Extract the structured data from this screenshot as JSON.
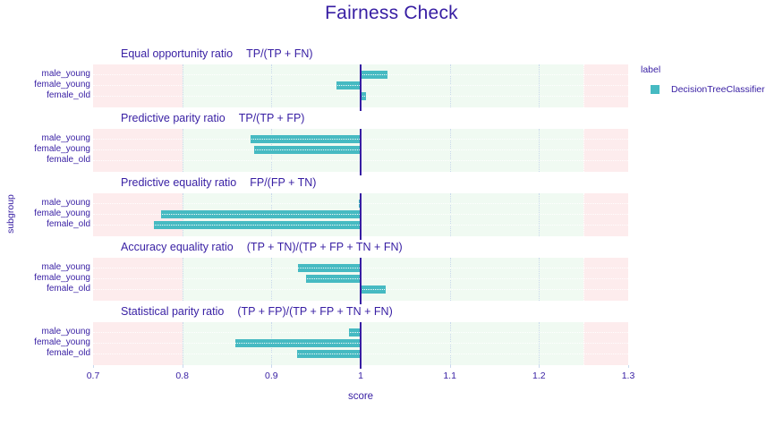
{
  "title": "Fairness Check",
  "axes": {
    "x_label": "score",
    "y_label": "subgroup",
    "x_ticks": [
      "0.7",
      "0.8",
      "0.9",
      "1",
      "1.1",
      "1.2",
      "1.3"
    ]
  },
  "legend": {
    "title": "label",
    "items": [
      {
        "label": "DecisionTreeClassifier",
        "color": "#46bac2"
      }
    ]
  },
  "colors": {
    "text": "#371ea3",
    "bar": "#46bac2",
    "panel_bg": "#f0faf2",
    "unfair_bg": "#fdeced",
    "gridline": "#c9d8ec",
    "baseline": "#371ea3"
  },
  "chart_data": {
    "type": "bar",
    "orientation": "horizontal",
    "title": "Fairness Check",
    "xlabel": "score",
    "ylabel": "subgroup",
    "x_range": [
      0.7,
      1.3
    ],
    "fair_range": [
      0.8,
      1.25
    ],
    "baseline": 1.0,
    "grid": "on",
    "legend_position": "right",
    "categories": [
      "male_young",
      "female_young",
      "female_old"
    ],
    "series_name": "DecisionTreeClassifier",
    "panels": [
      {
        "metric": "Equal opportunity ratio",
        "formula": "TP/(TP + FN)",
        "values": [
          1.03,
          0.973,
          1.006
        ]
      },
      {
        "metric": "Predictive parity ratio",
        "formula": "TP/(TP + FP)",
        "values": [
          0.877,
          0.881,
          1.0
        ]
      },
      {
        "metric": "Predictive equality ratio",
        "formula": "FP/(FP + TN)",
        "values": [
          0.998,
          0.776,
          0.768
        ]
      },
      {
        "metric": "Accuracy equality ratio",
        "formula": "(TP + TN)/(TP + FP + TN + FN)",
        "values": [
          0.93,
          0.939,
          1.028
        ]
      },
      {
        "metric": "Statistical parity ratio",
        "formula": "(TP + FP)/(TP + FP + TN + FN)",
        "values": [
          0.987,
          0.86,
          0.929
        ]
      }
    ]
  }
}
